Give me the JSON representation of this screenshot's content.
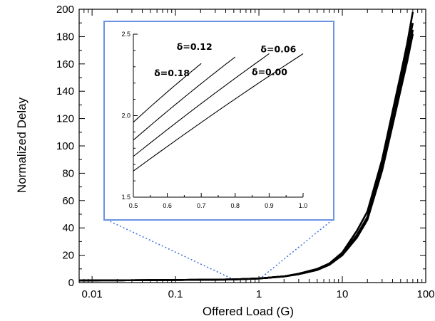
{
  "chart_data": [
    {
      "type": "line",
      "xscale": "log",
      "xlim": [
        0.007,
        100
      ],
      "ylim": [
        0,
        200
      ],
      "xlabel": "Offered Load (G)",
      "ylabel": "Normalized Delay",
      "xticks": [
        0.01,
        0.1,
        1,
        10,
        100
      ],
      "xtick_labels": [
        "0.01",
        "0.1",
        "1",
        "10",
        "100"
      ],
      "yticks": [
        0,
        20,
        40,
        60,
        80,
        100,
        120,
        140,
        160,
        180,
        200
      ],
      "ytick_labels": [
        "0",
        "20",
        "40",
        "60",
        "80",
        "100",
        "120",
        "140",
        "160",
        "180",
        "200"
      ],
      "grid": false,
      "color": "#000000",
      "series": [
        {
          "x": [
            0.007,
            0.01,
            0.03,
            0.1,
            0.3,
            0.5,
            1,
            2,
            3,
            5,
            7,
            10,
            15,
            20,
            30,
            40,
            50,
            60,
            70
          ],
          "y": [
            1.5,
            1.6,
            1.7,
            1.9,
            2.1,
            2.3,
            3.0,
            4.5,
            6.5,
            10,
            14,
            22,
            38,
            52,
            90,
            125,
            152,
            175,
            198
          ]
        },
        {
          "x": [
            0.007,
            0.01,
            0.03,
            0.1,
            0.3,
            0.5,
            1,
            2,
            3,
            5,
            7,
            10,
            15,
            20,
            30,
            40,
            50,
            60,
            70
          ],
          "y": [
            1.5,
            1.6,
            1.7,
            1.9,
            2.1,
            2.3,
            3.0,
            4.5,
            6.3,
            9.6,
            13.5,
            21,
            35,
            48,
            86,
            120,
            148,
            170,
            190
          ]
        },
        {
          "x": [
            0.007,
            0.01,
            0.03,
            0.1,
            0.3,
            0.5,
            1,
            2,
            3,
            5,
            7,
            10,
            15,
            20,
            30,
            40,
            50,
            60,
            70
          ],
          "y": [
            1.5,
            1.6,
            1.7,
            1.9,
            2.1,
            2.3,
            3.0,
            4.5,
            6.2,
            9.4,
            13.2,
            20.5,
            34,
            47,
            84,
            117,
            144,
            166,
            185
          ]
        },
        {
          "x": [
            0.007,
            0.01,
            0.03,
            0.1,
            0.3,
            0.5,
            1,
            2,
            3,
            5,
            7,
            10,
            15,
            20,
            30,
            40,
            50,
            60,
            70
          ],
          "y": [
            1.5,
            1.6,
            1.7,
            1.9,
            2.1,
            2.3,
            3.0,
            4.5,
            6.1,
            9.2,
            13,
            20,
            33,
            46,
            82,
            115,
            141,
            162,
            182
          ]
        }
      ]
    },
    {
      "type": "line",
      "inset": true,
      "xlim": [
        0.5,
        1.0
      ],
      "ylim": [
        1.5,
        2.5
      ],
      "xticks": [
        0.5,
        0.6,
        0.7,
        0.8,
        0.9,
        1.0
      ],
      "xtick_labels": [
        "0.5",
        "0.6",
        "0.7",
        "0.8",
        "0.9",
        "1.0"
      ],
      "yticks": [
        1.5,
        2.0,
        2.5
      ],
      "ytick_labels": [
        "1.5",
        "2.0",
        "2.5"
      ],
      "frame_color": "#6a93e0",
      "connector_color": "#3d6fe0",
      "series": [
        {
          "name": "δ = 0.00",
          "label": "δ=0.00",
          "x": [
            0.5,
            1.0
          ],
          "y": [
            1.66,
            2.38
          ]
        },
        {
          "name": "δ = 0.06",
          "label": "δ=0.06",
          "x": [
            0.5,
            0.9
          ],
          "y": [
            1.75,
            2.38
          ]
        },
        {
          "name": "δ = 0.12",
          "label": "δ=0.12",
          "x": [
            0.5,
            0.8
          ],
          "y": [
            1.85,
            2.36
          ]
        },
        {
          "name": "δ = 0.18",
          "label": "δ=0.18",
          "x": [
            0.5,
            0.7
          ],
          "y": [
            1.96,
            2.32
          ]
        }
      ]
    }
  ]
}
